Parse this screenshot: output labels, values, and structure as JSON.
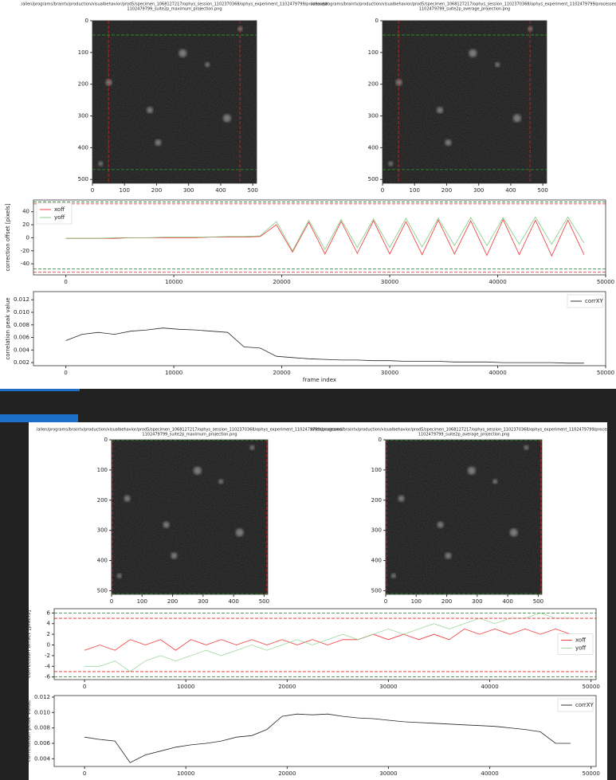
{
  "chart_data": [
    {
      "type": "image",
      "title_lines": [
        "/allen/programs/braintv/production/visualbehavior/prod5/specimen_1068127217/ophys_session_1102370368/ophys_experiment_1102479799/processed/",
        "1102479799_suite2p_maximum_projection.png"
      ],
      "xlim": [
        0,
        512
      ],
      "ylim": [
        512,
        0
      ],
      "xticks": [
        0,
        100,
        200,
        300,
        400,
        500
      ],
      "yticks": [
        0,
        100,
        200,
        300,
        400,
        500
      ],
      "vlines": [
        50,
        460
      ],
      "hlines": [
        45,
        469
      ],
      "vline_color": "#e02020",
      "hline_color": "#2a9a2a"
    },
    {
      "type": "image",
      "title_lines": [
        "/allen/programs/braintv/production/visualbehavior/prod5/specimen_1068127217/ophys_session_1102370368/ophys_experiment_1102479799/processed/",
        "1102479799_suite2p_average_projection.png"
      ],
      "xlim": [
        0,
        512
      ],
      "ylim": [
        512,
        0
      ],
      "xticks": [
        0,
        100,
        200,
        300,
        400,
        500
      ],
      "yticks": [
        0,
        100,
        200,
        300,
        400,
        500
      ],
      "vlines": [
        50,
        460
      ],
      "hlines": [
        45,
        469
      ],
      "vline_color": "#e02020",
      "hline_color": "#2a9a2a"
    },
    {
      "type": "line",
      "ylabel": "correction offset [pixels]",
      "legend": "upper left",
      "x": [
        0,
        1500,
        3000,
        4500,
        6000,
        7500,
        9000,
        10500,
        12000,
        13500,
        15000,
        16500,
        18000,
        19500,
        21000,
        22500,
        24000,
        25500,
        27000,
        28500,
        30000,
        31500,
        33000,
        34500,
        36000,
        37500,
        39000,
        40500,
        42000,
        43500,
        45000,
        46500,
        48000
      ],
      "series": [
        {
          "name": "xoff",
          "color": "#ee1111",
          "values": [
            -1,
            -1,
            -1,
            -1,
            0,
            0,
            0,
            0,
            0,
            1,
            1,
            1,
            2,
            20,
            -22,
            24,
            -25,
            25,
            -24,
            26,
            -25,
            25,
            -26,
            27,
            -25,
            26,
            -27,
            28,
            -26,
            27,
            -28,
            27,
            -26
          ]
        },
        {
          "name": "yoff",
          "color": "#6cbf6c",
          "values": [
            -1,
            -1,
            -1,
            0,
            0,
            0,
            1,
            1,
            1,
            1,
            2,
            2,
            3,
            25,
            -20,
            27,
            -18,
            28,
            -15,
            29,
            -15,
            30,
            -14,
            30,
            -12,
            31,
            -12,
            31,
            -10,
            32,
            -10,
            32,
            -8
          ]
        }
      ],
      "hlines": [
        {
          "value": 52,
          "color": "#e02020"
        },
        {
          "value": -53,
          "color": "#e02020"
        },
        {
          "value": 55,
          "color": "#2a7a2a"
        },
        {
          "value": -48,
          "color": "#2a7a2a"
        }
      ],
      "xlim": [
        -3000,
        50000
      ],
      "ylim": [
        -57,
        58
      ],
      "xticks": [
        0,
        10000,
        20000,
        30000,
        40000,
        50000
      ],
      "yticks": [
        -40,
        -20,
        0,
        20,
        40
      ]
    },
    {
      "type": "line",
      "ylabel": "correlation peak value",
      "xlabel": "frame index",
      "legend": "upper right",
      "x": [
        0,
        1500,
        3000,
        4500,
        6000,
        7500,
        9000,
        10500,
        12000,
        13500,
        15000,
        16500,
        18000,
        19500,
        21000,
        22500,
        24000,
        25500,
        27000,
        28500,
        30000,
        31500,
        33000,
        34500,
        36000,
        37500,
        39000,
        40500,
        42000,
        43500,
        45000,
        46500,
        48000
      ],
      "series": [
        {
          "name": "corrXY",
          "color": "#000000",
          "values": [
            0.0055,
            0.0065,
            0.0068,
            0.0065,
            0.007,
            0.0072,
            0.0075,
            0.0073,
            0.0072,
            0.007,
            0.0068,
            0.0045,
            0.0043,
            0.003,
            0.0028,
            0.0026,
            0.0025,
            0.0024,
            0.0024,
            0.0023,
            0.0023,
            0.0022,
            0.0022,
            0.0022,
            0.0021,
            0.0021,
            0.0021,
            0.002,
            0.002,
            0.002,
            0.002,
            0.0019,
            0.0019
          ]
        }
      ],
      "xlim": [
        -3000,
        50000
      ],
      "ylim": [
        0.0015,
        0.0133
      ],
      "xticks": [
        0,
        10000,
        20000,
        30000,
        40000,
        50000
      ],
      "yticks": [
        0.002,
        0.004,
        0.006,
        0.008,
        {
          "value": 0.01,
          "label": "0.010"
        },
        0.012
      ]
    },
    {
      "type": "image",
      "title_lines": [
        "/allen/programs/braintv/production/visualbehavior/prod5/specimen_1068127217/ophys_session_1102370368/ophys_experiment_1102479799/processed/",
        "1102479799_suite2p_maximum_projection.png"
      ],
      "xlim": [
        0,
        512
      ],
      "ylim": [
        512,
        0
      ],
      "xticks": [
        0,
        100,
        200,
        300,
        400,
        500
      ],
      "yticks": [
        0,
        100,
        200,
        300,
        400,
        500
      ],
      "vlines": [
        3,
        509
      ],
      "hlines": [
        2,
        510
      ],
      "vline_color": "#e02020",
      "hline_color": "#2a9a2a"
    },
    {
      "type": "image",
      "title_lines": [
        "/allen/programs/braintv/production/visualbehavior/prod5/specimen_1068127217/ophys_session_1102370368/ophys_experiment_1102479799/processed/",
        "1102479799_suite2p_average_projection.png"
      ],
      "xlim": [
        0,
        512
      ],
      "ylim": [
        512,
        0
      ],
      "xticks": [
        0,
        100,
        200,
        300,
        400,
        500
      ],
      "yticks": [
        0,
        100,
        200,
        300,
        400,
        500
      ],
      "vlines": [
        3,
        509
      ],
      "hlines": [
        2,
        510
      ],
      "vline_color": "#e02020",
      "hline_color": "#2a9a2a"
    },
    {
      "type": "line",
      "ylabel": "correction offset [pixels]",
      "legend": "center right",
      "x": [
        0,
        1500,
        3000,
        4500,
        6000,
        7500,
        9000,
        10500,
        12000,
        13500,
        15000,
        16500,
        18000,
        19500,
        21000,
        22500,
        24000,
        25500,
        27000,
        28500,
        30000,
        31500,
        33000,
        34500,
        36000,
        37500,
        39000,
        40500,
        42000,
        43500,
        45000,
        46500,
        48000
      ],
      "series": [
        {
          "name": "xoff",
          "color": "#ee1111",
          "values": [
            -1,
            0,
            -1,
            1,
            0,
            1,
            -1,
            1,
            0,
            1,
            0,
            1,
            0,
            1,
            0,
            1,
            0,
            1,
            1,
            2,
            1,
            2,
            1,
            2,
            1,
            3,
            2,
            3,
            2,
            3,
            2,
            3,
            2
          ]
        },
        {
          "name": "yoff",
          "color": "#8fd08f",
          "values": [
            -4,
            -4,
            -3,
            -5,
            -3,
            -2,
            -3,
            -2,
            -1,
            -2,
            -1,
            0,
            -1,
            0,
            1,
            0,
            1,
            2,
            1,
            2,
            3,
            2,
            3,
            4,
            3,
            4,
            5,
            4,
            5,
            5,
            6,
            5,
            5
          ]
        }
      ],
      "hlines": [
        {
          "value": 5,
          "color": "#e02020"
        },
        {
          "value": -5,
          "color": "#e02020"
        },
        {
          "value": 6,
          "color": "#2a7a2a"
        },
        {
          "value": -6,
          "color": "#2a7a2a"
        }
      ],
      "xlim": [
        -3000,
        50500
      ],
      "ylim": [
        -6.5,
        6.8
      ],
      "xticks": [
        0,
        10000,
        20000,
        30000,
        40000,
        50000
      ],
      "yticks": [
        -6,
        -4,
        -2,
        0,
        2,
        4,
        6
      ]
    },
    {
      "type": "line",
      "ylabel": "correlation peak value",
      "legend": "upper right",
      "x": [
        0,
        1500,
        3000,
        4500,
        6000,
        7500,
        9000,
        10500,
        12000,
        13500,
        15000,
        16500,
        18000,
        19500,
        21000,
        22500,
        24000,
        25500,
        27000,
        28500,
        30000,
        31500,
        33000,
        34500,
        36000,
        37500,
        39000,
        40500,
        42000,
        43500,
        45000,
        46500,
        48000
      ],
      "series": [
        {
          "name": "corrXY",
          "color": "#000000",
          "values": [
            0.0068,
            0.0065,
            0.0063,
            0.0035,
            0.0045,
            0.005,
            0.0055,
            0.0058,
            0.006,
            0.0063,
            0.0068,
            0.007,
            0.0078,
            0.0095,
            0.0098,
            0.0097,
            0.0098,
            0.0095,
            0.0093,
            0.0092,
            0.009,
            0.0088,
            0.0087,
            0.0086,
            0.0085,
            0.0084,
            0.0083,
            0.0082,
            0.008,
            0.0078,
            0.0075,
            0.006,
            0.006
          ]
        }
      ],
      "xlim": [
        -3000,
        50500
      ],
      "ylim": [
        0.003,
        0.0122
      ],
      "xticks": [
        0,
        10000,
        20000,
        30000,
        40000,
        50000
      ],
      "yticks": [
        0.004,
        0.006,
        0.008,
        {
          "value": 0.01,
          "label": "0.010"
        },
        0.012
      ]
    }
  ]
}
